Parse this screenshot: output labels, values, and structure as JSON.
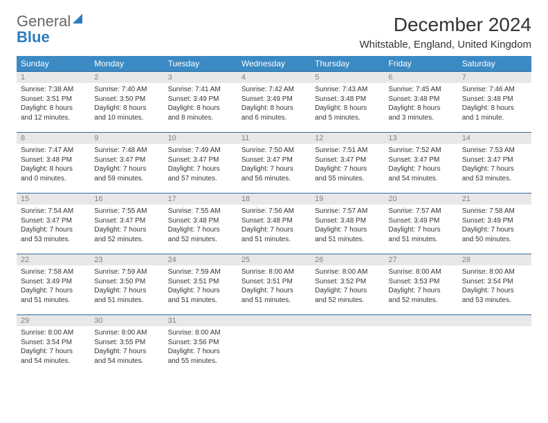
{
  "logo": {
    "general": "General",
    "blue": "Blue"
  },
  "title": "December 2024",
  "location": "Whitstable, England, United Kingdom",
  "colors": {
    "header_bg": "#3b8ac4",
    "header_fg": "#ffffff",
    "daynum_bg": "#e8e8e8",
    "daynum_fg": "#808080",
    "border": "#2a6a9e"
  },
  "dow": [
    "Sunday",
    "Monday",
    "Tuesday",
    "Wednesday",
    "Thursday",
    "Friday",
    "Saturday"
  ],
  "weeks": [
    [
      {
        "n": "1",
        "sr": "7:38 AM",
        "ss": "3:51 PM",
        "dl": "8 hours and 12 minutes."
      },
      {
        "n": "2",
        "sr": "7:40 AM",
        "ss": "3:50 PM",
        "dl": "8 hours and 10 minutes."
      },
      {
        "n": "3",
        "sr": "7:41 AM",
        "ss": "3:49 PM",
        "dl": "8 hours and 8 minutes."
      },
      {
        "n": "4",
        "sr": "7:42 AM",
        "ss": "3:49 PM",
        "dl": "8 hours and 6 minutes."
      },
      {
        "n": "5",
        "sr": "7:43 AM",
        "ss": "3:48 PM",
        "dl": "8 hours and 5 minutes."
      },
      {
        "n": "6",
        "sr": "7:45 AM",
        "ss": "3:48 PM",
        "dl": "8 hours and 3 minutes."
      },
      {
        "n": "7",
        "sr": "7:46 AM",
        "ss": "3:48 PM",
        "dl": "8 hours and 1 minute."
      }
    ],
    [
      {
        "n": "8",
        "sr": "7:47 AM",
        "ss": "3:48 PM",
        "dl": "8 hours and 0 minutes."
      },
      {
        "n": "9",
        "sr": "7:48 AM",
        "ss": "3:47 PM",
        "dl": "7 hours and 59 minutes."
      },
      {
        "n": "10",
        "sr": "7:49 AM",
        "ss": "3:47 PM",
        "dl": "7 hours and 57 minutes."
      },
      {
        "n": "11",
        "sr": "7:50 AM",
        "ss": "3:47 PM",
        "dl": "7 hours and 56 minutes."
      },
      {
        "n": "12",
        "sr": "7:51 AM",
        "ss": "3:47 PM",
        "dl": "7 hours and 55 minutes."
      },
      {
        "n": "13",
        "sr": "7:52 AM",
        "ss": "3:47 PM",
        "dl": "7 hours and 54 minutes."
      },
      {
        "n": "14",
        "sr": "7:53 AM",
        "ss": "3:47 PM",
        "dl": "7 hours and 53 minutes."
      }
    ],
    [
      {
        "n": "15",
        "sr": "7:54 AM",
        "ss": "3:47 PM",
        "dl": "7 hours and 53 minutes."
      },
      {
        "n": "16",
        "sr": "7:55 AM",
        "ss": "3:47 PM",
        "dl": "7 hours and 52 minutes."
      },
      {
        "n": "17",
        "sr": "7:55 AM",
        "ss": "3:48 PM",
        "dl": "7 hours and 52 minutes."
      },
      {
        "n": "18",
        "sr": "7:56 AM",
        "ss": "3:48 PM",
        "dl": "7 hours and 51 minutes."
      },
      {
        "n": "19",
        "sr": "7:57 AM",
        "ss": "3:48 PM",
        "dl": "7 hours and 51 minutes."
      },
      {
        "n": "20",
        "sr": "7:57 AM",
        "ss": "3:49 PM",
        "dl": "7 hours and 51 minutes."
      },
      {
        "n": "21",
        "sr": "7:58 AM",
        "ss": "3:49 PM",
        "dl": "7 hours and 50 minutes."
      }
    ],
    [
      {
        "n": "22",
        "sr": "7:58 AM",
        "ss": "3:49 PM",
        "dl": "7 hours and 51 minutes."
      },
      {
        "n": "23",
        "sr": "7:59 AM",
        "ss": "3:50 PM",
        "dl": "7 hours and 51 minutes."
      },
      {
        "n": "24",
        "sr": "7:59 AM",
        "ss": "3:51 PM",
        "dl": "7 hours and 51 minutes."
      },
      {
        "n": "25",
        "sr": "8:00 AM",
        "ss": "3:51 PM",
        "dl": "7 hours and 51 minutes."
      },
      {
        "n": "26",
        "sr": "8:00 AM",
        "ss": "3:52 PM",
        "dl": "7 hours and 52 minutes."
      },
      {
        "n": "27",
        "sr": "8:00 AM",
        "ss": "3:53 PM",
        "dl": "7 hours and 52 minutes."
      },
      {
        "n": "28",
        "sr": "8:00 AM",
        "ss": "3:54 PM",
        "dl": "7 hours and 53 minutes."
      }
    ],
    [
      {
        "n": "29",
        "sr": "8:00 AM",
        "ss": "3:54 PM",
        "dl": "7 hours and 54 minutes."
      },
      {
        "n": "30",
        "sr": "8:00 AM",
        "ss": "3:55 PM",
        "dl": "7 hours and 54 minutes."
      },
      {
        "n": "31",
        "sr": "8:00 AM",
        "ss": "3:56 PM",
        "dl": "7 hours and 55 minutes."
      },
      null,
      null,
      null,
      null
    ]
  ],
  "labels": {
    "sunrise": "Sunrise:",
    "sunset": "Sunset:",
    "daylight": "Daylight:"
  }
}
